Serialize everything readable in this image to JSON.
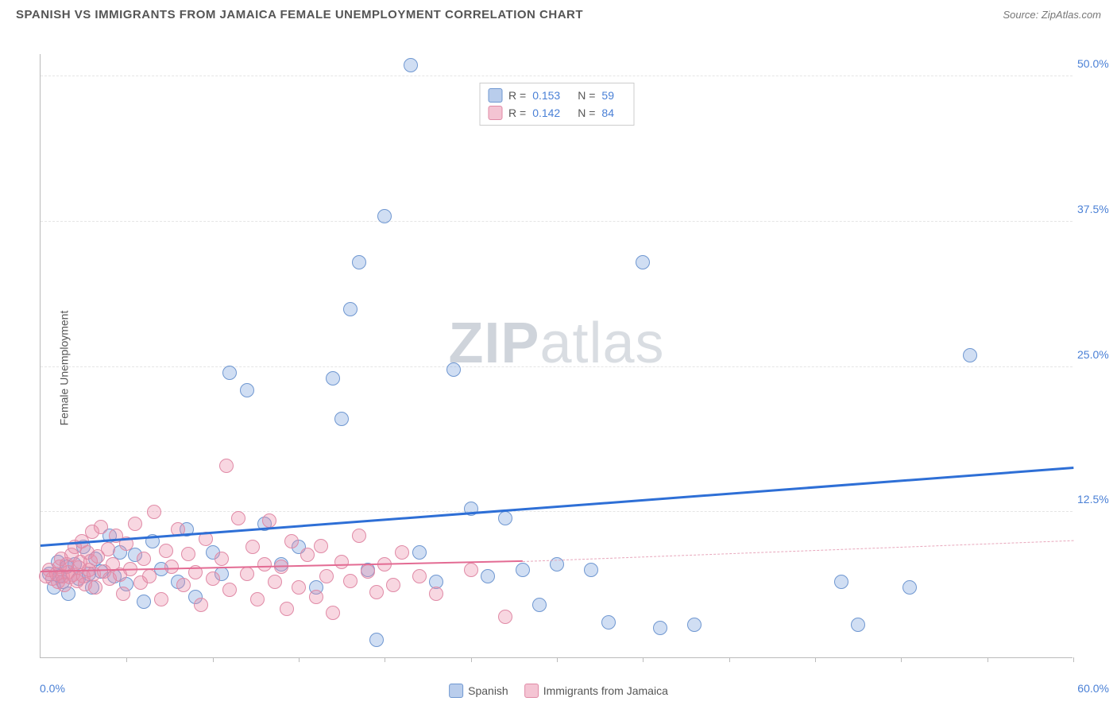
{
  "header": {
    "title": "SPANISH VS IMMIGRANTS FROM JAMAICA FEMALE UNEMPLOYMENT CORRELATION CHART",
    "source": "Source: ZipAtlas.com"
  },
  "watermark": {
    "zip": "ZIP",
    "atlas": "atlas"
  },
  "chart": {
    "type": "scatter",
    "ylabel": "Female Unemployment",
    "background_color": "#ffffff",
    "grid_color": "#e5e5e5",
    "axis_color": "#bbbbbb",
    "tick_label_color": "#4a80d6",
    "xlim": [
      0,
      60
    ],
    "ylim": [
      0,
      52
    ],
    "xticks_minor": [
      5,
      10,
      15,
      20,
      25,
      30,
      35,
      40,
      45,
      50,
      55,
      60
    ],
    "yticks": [
      {
        "v": 12.5,
        "label": "12.5%"
      },
      {
        "v": 25.0,
        "label": "25.0%"
      },
      {
        "v": 37.5,
        "label": "37.5%"
      },
      {
        "v": 50.0,
        "label": "50.0%"
      }
    ],
    "x_min_label": "0.0%",
    "x_max_label": "60.0%",
    "marker_radius": 9,
    "marker_border_width": 1.5,
    "series": [
      {
        "name": "Spanish",
        "fill": "rgba(120,160,220,0.35)",
        "stroke": "#6f97d1",
        "swatch_fill": "#b9cdec",
        "swatch_stroke": "#6f97d1",
        "r": 0.153,
        "n": 59,
        "trend": {
          "x1": 0,
          "y1": 9.5,
          "x2": 60,
          "y2": 16.2,
          "color": "#2e6fd6",
          "width": 3,
          "dash": false
        },
        "points": [
          [
            0.5,
            7.2
          ],
          [
            0.8,
            6.0
          ],
          [
            1.0,
            8.2
          ],
          [
            1.1,
            7.0
          ],
          [
            1.3,
            6.5
          ],
          [
            1.5,
            7.8
          ],
          [
            1.6,
            5.5
          ],
          [
            2.0,
            8.0
          ],
          [
            2.2,
            6.8
          ],
          [
            2.5,
            9.5
          ],
          [
            2.8,
            7.2
          ],
          [
            3.0,
            6.0
          ],
          [
            3.2,
            8.5
          ],
          [
            3.5,
            7.4
          ],
          [
            4.0,
            10.5
          ],
          [
            4.3,
            7.0
          ],
          [
            4.6,
            9.0
          ],
          [
            5.0,
            6.3
          ],
          [
            5.5,
            8.8
          ],
          [
            6.0,
            4.8
          ],
          [
            6.5,
            10.0
          ],
          [
            7.0,
            7.6
          ],
          [
            8.0,
            6.5
          ],
          [
            8.5,
            11.0
          ],
          [
            9.0,
            5.2
          ],
          [
            10.0,
            9.0
          ],
          [
            10.5,
            7.2
          ],
          [
            11.0,
            24.5
          ],
          [
            12.0,
            23.0
          ],
          [
            13.0,
            11.5
          ],
          [
            14.0,
            8.0
          ],
          [
            15.0,
            9.5
          ],
          [
            16.0,
            6.0
          ],
          [
            17.0,
            24.0
          ],
          [
            17.5,
            20.5
          ],
          [
            18.0,
            30.0
          ],
          [
            18.5,
            34.0
          ],
          [
            19.0,
            7.5
          ],
          [
            19.5,
            1.5
          ],
          [
            20.0,
            38.0
          ],
          [
            21.5,
            51.0
          ],
          [
            22.0,
            9.0
          ],
          [
            23.0,
            6.5
          ],
          [
            24.0,
            24.8
          ],
          [
            25.0,
            12.8
          ],
          [
            26.0,
            7.0
          ],
          [
            27.0,
            12.0
          ],
          [
            28.0,
            7.5
          ],
          [
            29.0,
            4.5
          ],
          [
            30.0,
            8.0
          ],
          [
            32.0,
            7.5
          ],
          [
            33.0,
            3.0
          ],
          [
            35.0,
            34.0
          ],
          [
            36.0,
            2.5
          ],
          [
            38.0,
            2.8
          ],
          [
            46.5,
            6.5
          ],
          [
            47.5,
            2.8
          ],
          [
            50.5,
            6.0
          ],
          [
            54.0,
            26.0
          ]
        ]
      },
      {
        "name": "Immigrants from Jamaica",
        "fill": "rgba(235,140,170,0.35)",
        "stroke": "#e08aa6",
        "swatch_fill": "#f4c4d3",
        "swatch_stroke": "#e08aa6",
        "r": 0.142,
        "n": 84,
        "trend_solid": {
          "x1": 0,
          "y1": 7.3,
          "x2": 28,
          "y2": 8.2,
          "color": "#e36b93",
          "width": 2.5
        },
        "trend_dash": {
          "x1": 28,
          "y1": 8.2,
          "x2": 60,
          "y2": 10.0,
          "color": "#e8a7bc",
          "width": 1.5
        },
        "points": [
          [
            0.3,
            7.0
          ],
          [
            0.5,
            7.5
          ],
          [
            0.7,
            6.8
          ],
          [
            0.9,
            7.2
          ],
          [
            1.0,
            6.5
          ],
          [
            1.1,
            7.8
          ],
          [
            1.2,
            8.5
          ],
          [
            1.3,
            7.0
          ],
          [
            1.4,
            6.2
          ],
          [
            1.5,
            8.0
          ],
          [
            1.6,
            7.3
          ],
          [
            1.7,
            6.9
          ],
          [
            1.8,
            8.8
          ],
          [
            1.9,
            7.1
          ],
          [
            2.0,
            9.5
          ],
          [
            2.1,
            6.6
          ],
          [
            2.2,
            7.7
          ],
          [
            2.3,
            8.2
          ],
          [
            2.4,
            10.0
          ],
          [
            2.5,
            7.0
          ],
          [
            2.6,
            6.3
          ],
          [
            2.7,
            9.0
          ],
          [
            2.8,
            7.5
          ],
          [
            2.9,
            8.3
          ],
          [
            3.0,
            10.8
          ],
          [
            3.1,
            7.2
          ],
          [
            3.2,
            6.0
          ],
          [
            3.3,
            8.7
          ],
          [
            3.5,
            11.2
          ],
          [
            3.7,
            7.4
          ],
          [
            3.9,
            9.3
          ],
          [
            4.0,
            6.8
          ],
          [
            4.2,
            8.0
          ],
          [
            4.4,
            10.5
          ],
          [
            4.6,
            7.1
          ],
          [
            4.8,
            5.5
          ],
          [
            5.0,
            9.8
          ],
          [
            5.2,
            7.6
          ],
          [
            5.5,
            11.5
          ],
          [
            5.8,
            6.4
          ],
          [
            6.0,
            8.5
          ],
          [
            6.3,
            7.0
          ],
          [
            6.6,
            12.5
          ],
          [
            7.0,
            5.0
          ],
          [
            7.3,
            9.2
          ],
          [
            7.6,
            7.8
          ],
          [
            8.0,
            11.0
          ],
          [
            8.3,
            6.2
          ],
          [
            8.6,
            8.9
          ],
          [
            9.0,
            7.3
          ],
          [
            9.3,
            4.5
          ],
          [
            9.6,
            10.2
          ],
          [
            10.0,
            6.8
          ],
          [
            10.5,
            8.5
          ],
          [
            10.8,
            16.5
          ],
          [
            11.0,
            5.8
          ],
          [
            11.5,
            12.0
          ],
          [
            12.0,
            7.2
          ],
          [
            12.3,
            9.5
          ],
          [
            12.6,
            5.0
          ],
          [
            13.0,
            8.0
          ],
          [
            13.3,
            11.8
          ],
          [
            13.6,
            6.5
          ],
          [
            14.0,
            7.8
          ],
          [
            14.3,
            4.2
          ],
          [
            14.6,
            10.0
          ],
          [
            15.0,
            6.0
          ],
          [
            15.5,
            8.8
          ],
          [
            16.0,
            5.2
          ],
          [
            16.3,
            9.6
          ],
          [
            16.6,
            7.0
          ],
          [
            17.0,
            3.8
          ],
          [
            17.5,
            8.2
          ],
          [
            18.0,
            6.6
          ],
          [
            18.5,
            10.5
          ],
          [
            19.0,
            7.4
          ],
          [
            19.5,
            5.6
          ],
          [
            20.0,
            8.0
          ],
          [
            20.5,
            6.2
          ],
          [
            21.0,
            9.0
          ],
          [
            22.0,
            7.0
          ],
          [
            23.0,
            5.5
          ],
          [
            25.0,
            7.5
          ],
          [
            27.0,
            3.5
          ]
        ]
      }
    ],
    "legend_top": {
      "r_label": "R =",
      "n_label": "N ="
    },
    "legend_bottom": {
      "items": [
        "Spanish",
        "Immigrants from Jamaica"
      ]
    }
  }
}
